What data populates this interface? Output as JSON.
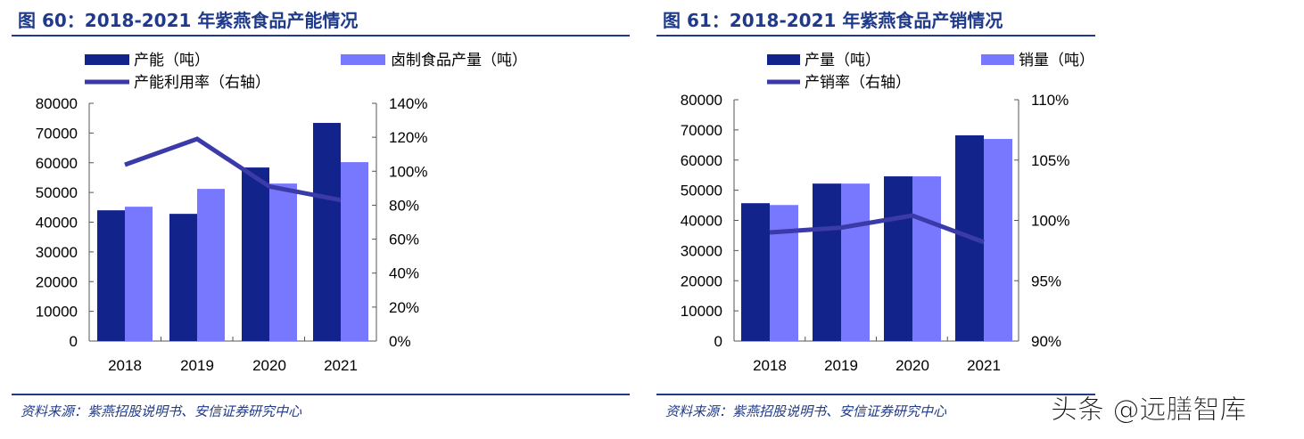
{
  "chart_data": [
    {
      "type": "bar+line",
      "title": "图 60：2018-2021 年紫燕食品产能情况",
      "categories": [
        "2018",
        "2019",
        "2020",
        "2021"
      ],
      "series": [
        {
          "name": "产能（吨）",
          "type": "bar",
          "axis": "left",
          "color": "#13238c",
          "values": [
            44000,
            42800,
            58400,
            73400
          ]
        },
        {
          "name": "卤制食品产量（吨）",
          "type": "bar",
          "axis": "left",
          "color": "#7878ff",
          "values": [
            45200,
            51200,
            53000,
            60200
          ]
        },
        {
          "name": "产能利用率（右轴）",
          "type": "line",
          "axis": "right",
          "color": "#3a3aa8",
          "values": [
            103.8,
            119.0,
            91.0,
            83.0
          ]
        }
      ],
      "ylim": [
        0,
        80000
      ],
      "yticks": [
        "0",
        "10000",
        "20000",
        "30000",
        "40000",
        "50000",
        "60000",
        "70000",
        "80000"
      ],
      "y2lim": [
        0,
        140
      ],
      "y2ticks": [
        "0%",
        "20%",
        "40%",
        "60%",
        "80%",
        "100%",
        "120%",
        "140%"
      ],
      "source": "资料来源：紫燕招股说明书、安信证券研究中心",
      "grid": false,
      "legend": "top"
    },
    {
      "type": "bar+line",
      "title": "图 61：2018-2021 年紫燕食品产销情况",
      "categories": [
        "2018",
        "2019",
        "2020",
        "2021"
      ],
      "series": [
        {
          "name": "产量（吨）",
          "type": "bar",
          "axis": "left",
          "color": "#13238c",
          "values": [
            45700,
            52200,
            54600,
            68200
          ]
        },
        {
          "name": "销量（吨）",
          "type": "bar",
          "axis": "left",
          "color": "#7878ff",
          "values": [
            45100,
            52200,
            54600,
            67000
          ]
        },
        {
          "name": "产销率（右轴）",
          "type": "line",
          "axis": "right",
          "color": "#3a3aa8",
          "values": [
            99.0,
            99.4,
            100.4,
            98.2
          ]
        }
      ],
      "ylim": [
        0,
        80000
      ],
      "yticks": [
        "0",
        "10000",
        "20000",
        "30000",
        "40000",
        "50000",
        "60000",
        "70000",
        "80000"
      ],
      "y2lim": [
        90,
        110
      ],
      "y2ticks": [
        "90%",
        "95%",
        "100%",
        "105%",
        "110%"
      ],
      "source": "资料来源：紫燕招股说明书、安信证券研究中心",
      "grid": false,
      "legend": "top"
    }
  ],
  "watermark": "头条 @远膳智库"
}
